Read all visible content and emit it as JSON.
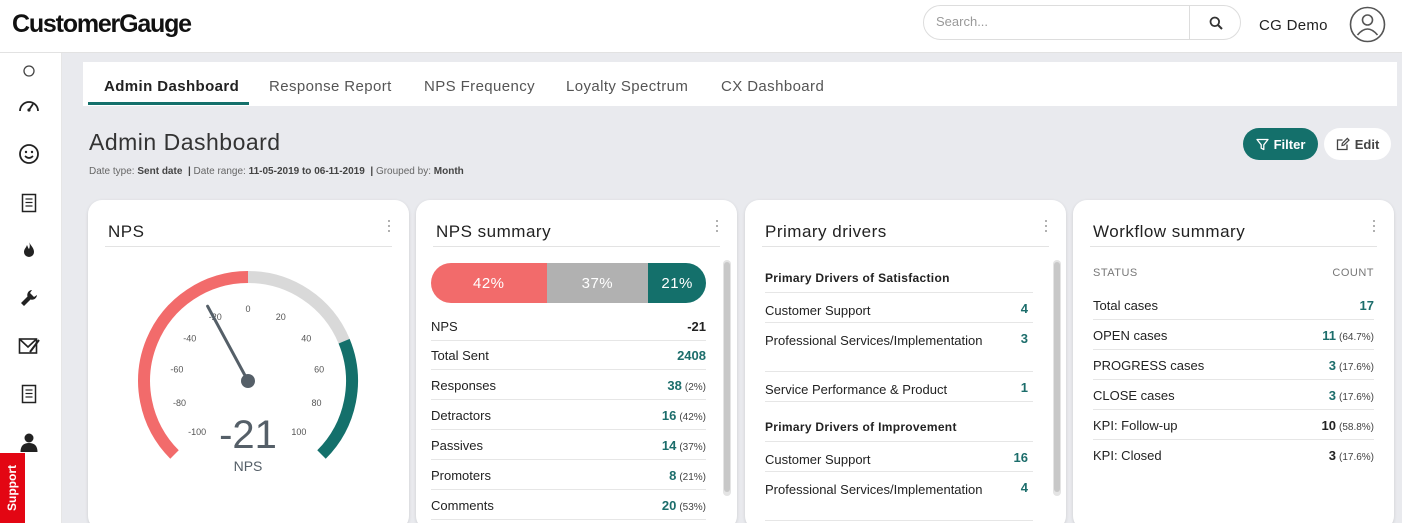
{
  "app": {
    "logo": "CustomerGauge",
    "user_name": "CG Demo"
  },
  "search": {
    "placeholder": "Search..."
  },
  "tabs": [
    "Admin Dashboard",
    "Response Report",
    "NPS Frequency",
    "Loyalty Spectrum",
    "CX Dashboard"
  ],
  "page": {
    "title": "Admin Dashboard",
    "meta": {
      "date_type_label": "Date type:",
      "date_type": "Sent date",
      "date_range_label": "Date range:",
      "date_range": "11-05-2019 to 06-11-2019",
      "grouped_label": "Grouped by:",
      "grouped": "Month"
    },
    "filter_label": "Filter",
    "edit_label": "Edit"
  },
  "support_label": "Support",
  "nps_card": {
    "title": "NPS",
    "score": -21,
    "score_text": "-21",
    "caption": "NPS",
    "ticks": [
      "-100",
      "-80",
      "-60",
      "-40",
      "-20",
      "0",
      "20",
      "40",
      "60",
      "80",
      "100"
    ]
  },
  "nps_summary": {
    "title": "NPS summary",
    "bar": [
      {
        "name": "detractors",
        "percent": 42,
        "label": "42%",
        "color": "#f26b6b"
      },
      {
        "name": "passives",
        "percent": 37,
        "label": "37%",
        "color": "#b1b1b1"
      },
      {
        "name": "promoters",
        "percent": 21,
        "label": "21%",
        "color": "#14706b"
      }
    ],
    "rows": [
      {
        "label": "NPS",
        "value": "-21",
        "pct": ""
      },
      {
        "label": "Total Sent",
        "value": "2408",
        "pct": ""
      },
      {
        "label": "Responses",
        "value": "38",
        "pct": "(2%)"
      },
      {
        "label": "Detractors",
        "value": "16",
        "pct": "(42%)"
      },
      {
        "label": "Passives",
        "value": "14",
        "pct": "(37%)"
      },
      {
        "label": "Promoters",
        "value": "8",
        "pct": "(21%)"
      },
      {
        "label": "Comments",
        "value": "20",
        "pct": "(53%)"
      }
    ]
  },
  "primary_drivers": {
    "title": "Primary drivers",
    "satisfaction_heading": "Primary Drivers of Satisfaction",
    "satisfaction": [
      {
        "label": "Customer Support",
        "value": "4"
      },
      {
        "label": "Professional Services/Implementation",
        "value": "3"
      },
      {
        "label": "Service Performance & Product",
        "value": "1"
      }
    ],
    "improvement_heading": "Primary Drivers of Improvement",
    "improvement": [
      {
        "label": "Customer Support",
        "value": "16"
      },
      {
        "label": "Professional Services/Implementation",
        "value": "4"
      }
    ]
  },
  "workflow": {
    "title": "Workflow summary",
    "status_header": "STATUS",
    "count_header": "COUNT",
    "rows": [
      {
        "label": "Total cases",
        "value": "17",
        "pct": ""
      },
      {
        "label": "OPEN cases",
        "value": "11",
        "pct": "(64.7%)"
      },
      {
        "label": "PROGRESS cases",
        "value": "3",
        "pct": "(17.6%)"
      },
      {
        "label": "CLOSE cases",
        "value": "3",
        "pct": "(17.6%)"
      },
      {
        "label": "KPI: Follow-up",
        "value": "10",
        "pct": "(58.8%)"
      },
      {
        "label": "KPI: Closed",
        "value": "3",
        "pct": "(17.6%)"
      }
    ]
  },
  "colors": {
    "teal": "#14706b",
    "red": "#f26b6b",
    "gray": "#b1b1b1"
  }
}
